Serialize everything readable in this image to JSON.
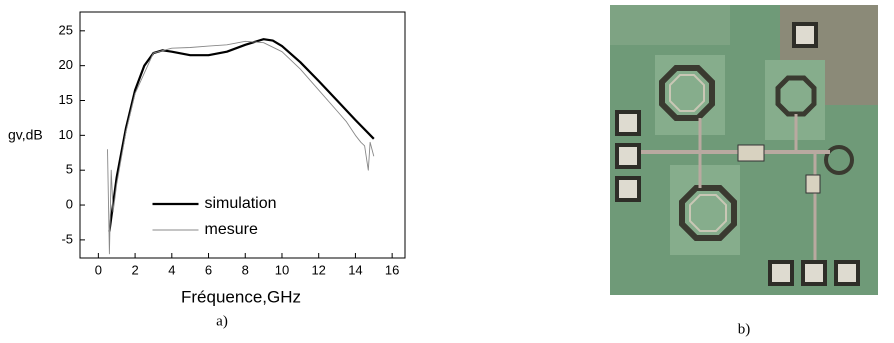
{
  "chart_data": {
    "type": "line",
    "xlabel": "Fréquence,GHz",
    "ylabel": "gv,dB",
    "xlim": [
      -1,
      16.7
    ],
    "ylim": [
      -7.6,
      27.7
    ],
    "xticks": [
      0,
      2,
      4,
      6,
      8,
      10,
      12,
      14,
      16
    ],
    "yticks": [
      -5,
      0,
      5,
      10,
      15,
      20,
      25
    ],
    "legend": "lower center",
    "series": [
      {
        "name": "simulation",
        "color": "#000000",
        "x": [
          0.6,
          1,
          1.5,
          2,
          2.5,
          3,
          3.5,
          4,
          5,
          6,
          7,
          8,
          9,
          9.5,
          10,
          11,
          12,
          13,
          14,
          15
        ],
        "values": [
          -3.8,
          4,
          11,
          16.5,
          20,
          21.8,
          22.2,
          22,
          21.5,
          21.5,
          22,
          23,
          23.8,
          23.6,
          22.8,
          20.5,
          17.8,
          15,
          12.2,
          9.5
        ]
      },
      {
        "name": "mesure",
        "color": "#888888",
        "x": [
          0.5,
          0.6,
          0.7,
          0.8,
          1,
          1.5,
          2,
          3,
          4,
          5,
          6,
          7,
          8,
          9,
          10,
          11,
          12,
          13,
          13.5,
          14,
          14.3,
          14.5,
          14.7,
          14.8,
          15
        ],
        "values": [
          8,
          -7,
          5,
          -1,
          3,
          10.5,
          16,
          21.8,
          22.5,
          22.6,
          22.8,
          23,
          23.5,
          23.3,
          22,
          19.5,
          16.5,
          13.5,
          12,
          10,
          9,
          8.5,
          5,
          9,
          7
        ]
      }
    ]
  },
  "captions": [
    "a)",
    "b)"
  ]
}
